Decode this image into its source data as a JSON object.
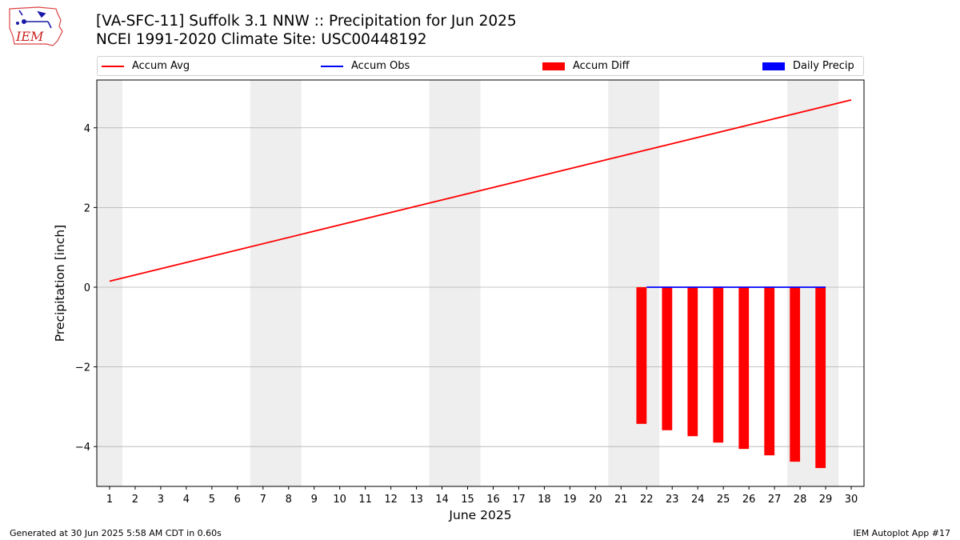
{
  "header": {
    "logo_text": "IEM",
    "title_line1": "[VA-SFC-11] Suffolk 3.1 NNW :: Precipitation for Jun 2025",
    "title_line2": "NCEI 1991-2020 Climate Site: USC00448192"
  },
  "legend": [
    {
      "label": "Accum Avg",
      "kind": "line",
      "color": "#ff0000"
    },
    {
      "label": "Accum Obs",
      "kind": "line",
      "color": "#0000ff"
    },
    {
      "label": "Accum Diff",
      "kind": "patch",
      "color": "#ff0000"
    },
    {
      "label": "Daily Precip",
      "kind": "patch",
      "color": "#0000ff"
    }
  ],
  "footer": {
    "left": "Generated at 30 Jun 2025 5:58 AM CDT in 0.60s",
    "right": "IEM Autoplot App #17"
  },
  "chart_data": {
    "type": "line",
    "xlabel": "June 2025",
    "ylabel": "Precipitation [inch]",
    "xlim": [
      0.5,
      30.5
    ],
    "ylim": [
      -5.0,
      5.2
    ],
    "x_ticks": [
      1,
      2,
      3,
      4,
      5,
      6,
      7,
      8,
      9,
      10,
      11,
      12,
      13,
      14,
      15,
      16,
      17,
      18,
      19,
      20,
      21,
      22,
      23,
      24,
      25,
      26,
      27,
      28,
      29,
      30
    ],
    "y_ticks": [
      -4,
      -2,
      0,
      2,
      4
    ],
    "y_tick_labels": [
      "−4",
      "−2",
      "0",
      "2",
      "4"
    ],
    "grid": "horizontal",
    "weekend_shading": [
      [
        0.5,
        1.5
      ],
      [
        6.5,
        8.5
      ],
      [
        13.5,
        15.5
      ],
      [
        20.5,
        22.5
      ],
      [
        27.5,
        29.5
      ]
    ],
    "weekend_color": "#eeeeee",
    "series": [
      {
        "name": "Accum Avg",
        "type": "line",
        "color": "#ff0000",
        "x": [
          1,
          30
        ],
        "values": [
          0.15,
          4.7
        ]
      },
      {
        "name": "Accum Obs",
        "type": "line",
        "color": "#0000ff",
        "x": [
          22,
          29
        ],
        "values": [
          0,
          0
        ]
      },
      {
        "name": "Accum Diff",
        "type": "bar",
        "color": "#ff0000",
        "x": [
          21.8,
          22.8,
          23.8,
          24.8,
          25.8,
          26.8,
          27.8,
          28.8
        ],
        "values": [
          -3.43,
          -3.59,
          -3.74,
          -3.9,
          -4.06,
          -4.22,
          -4.38,
          -4.54
        ]
      },
      {
        "name": "Daily Precip",
        "type": "bar",
        "color": "#0000ff",
        "x": [
          22,
          23,
          24,
          25,
          26,
          27,
          28,
          29
        ],
        "values": [
          0,
          0,
          0,
          0,
          0,
          0,
          0,
          0
        ]
      }
    ]
  }
}
